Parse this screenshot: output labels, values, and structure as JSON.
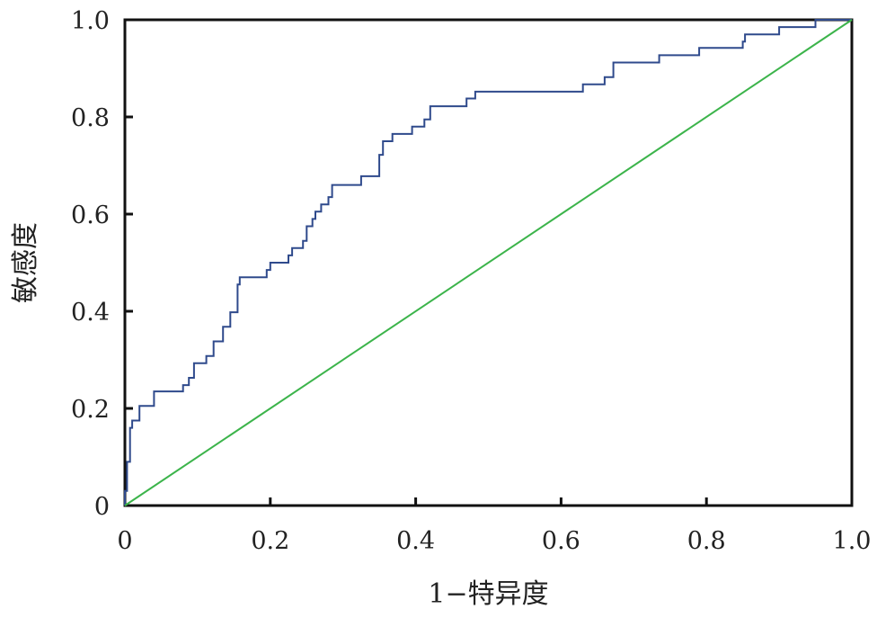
{
  "chart_data": {
    "type": "line",
    "title": "",
    "xlabel": "1−特异度",
    "ylabel": "敏感度",
    "xlim": [
      0,
      1
    ],
    "ylim": [
      0,
      1
    ],
    "x_ticks": [
      "0",
      "0.2",
      "0.4",
      "0.6",
      "0.8",
      "1.0"
    ],
    "y_ticks": [
      "0",
      "0.2",
      "0.4",
      "0.6",
      "0.8",
      "1.0"
    ],
    "grid": false,
    "series": [
      {
        "color": "#2f4a8c",
        "style": "step",
        "points": [
          [
            0.0,
            0.0
          ],
          [
            0.0,
            0.03
          ],
          [
            0.003,
            0.03
          ],
          [
            0.003,
            0.09
          ],
          [
            0.007,
            0.09
          ],
          [
            0.007,
            0.16
          ],
          [
            0.01,
            0.16
          ],
          [
            0.01,
            0.175
          ],
          [
            0.02,
            0.175
          ],
          [
            0.02,
            0.205
          ],
          [
            0.04,
            0.205
          ],
          [
            0.04,
            0.235
          ],
          [
            0.08,
            0.235
          ],
          [
            0.08,
            0.248
          ],
          [
            0.088,
            0.248
          ],
          [
            0.088,
            0.263
          ],
          [
            0.095,
            0.263
          ],
          [
            0.095,
            0.293
          ],
          [
            0.112,
            0.293
          ],
          [
            0.112,
            0.308
          ],
          [
            0.122,
            0.308
          ],
          [
            0.122,
            0.338
          ],
          [
            0.135,
            0.338
          ],
          [
            0.135,
            0.368
          ],
          [
            0.145,
            0.368
          ],
          [
            0.145,
            0.398
          ],
          [
            0.155,
            0.398
          ],
          [
            0.155,
            0.455
          ],
          [
            0.158,
            0.455
          ],
          [
            0.158,
            0.47
          ],
          [
            0.195,
            0.47
          ],
          [
            0.195,
            0.485
          ],
          [
            0.2,
            0.485
          ],
          [
            0.2,
            0.5
          ],
          [
            0.225,
            0.5
          ],
          [
            0.225,
            0.515
          ],
          [
            0.23,
            0.515
          ],
          [
            0.23,
            0.53
          ],
          [
            0.245,
            0.53
          ],
          [
            0.245,
            0.545
          ],
          [
            0.25,
            0.545
          ],
          [
            0.25,
            0.575
          ],
          [
            0.258,
            0.575
          ],
          [
            0.258,
            0.59
          ],
          [
            0.262,
            0.59
          ],
          [
            0.262,
            0.605
          ],
          [
            0.27,
            0.605
          ],
          [
            0.27,
            0.62
          ],
          [
            0.28,
            0.62
          ],
          [
            0.28,
            0.635
          ],
          [
            0.285,
            0.635
          ],
          [
            0.285,
            0.66
          ],
          [
            0.325,
            0.66
          ],
          [
            0.325,
            0.678
          ],
          [
            0.35,
            0.678
          ],
          [
            0.35,
            0.722
          ],
          [
            0.355,
            0.722
          ],
          [
            0.355,
            0.75
          ],
          [
            0.368,
            0.75
          ],
          [
            0.368,
            0.765
          ],
          [
            0.395,
            0.765
          ],
          [
            0.395,
            0.78
          ],
          [
            0.412,
            0.78
          ],
          [
            0.412,
            0.795
          ],
          [
            0.42,
            0.795
          ],
          [
            0.42,
            0.822
          ],
          [
            0.47,
            0.822
          ],
          [
            0.47,
            0.838
          ],
          [
            0.482,
            0.838
          ],
          [
            0.482,
            0.852
          ],
          [
            0.63,
            0.852
          ],
          [
            0.63,
            0.867
          ],
          [
            0.66,
            0.867
          ],
          [
            0.66,
            0.882
          ],
          [
            0.672,
            0.882
          ],
          [
            0.672,
            0.912
          ],
          [
            0.735,
            0.912
          ],
          [
            0.735,
            0.927
          ],
          [
            0.79,
            0.927
          ],
          [
            0.79,
            0.942
          ],
          [
            0.85,
            0.942
          ],
          [
            0.85,
            0.955
          ],
          [
            0.853,
            0.955
          ],
          [
            0.853,
            0.97
          ],
          [
            0.9,
            0.97
          ],
          [
            0.9,
            0.985
          ],
          [
            0.95,
            0.985
          ],
          [
            0.95,
            1.0
          ],
          [
            1.0,
            1.0
          ]
        ]
      },
      {
        "color": "#3cb44b",
        "style": "line",
        "points": [
          [
            0,
            0
          ],
          [
            1,
            1
          ]
        ]
      }
    ]
  }
}
